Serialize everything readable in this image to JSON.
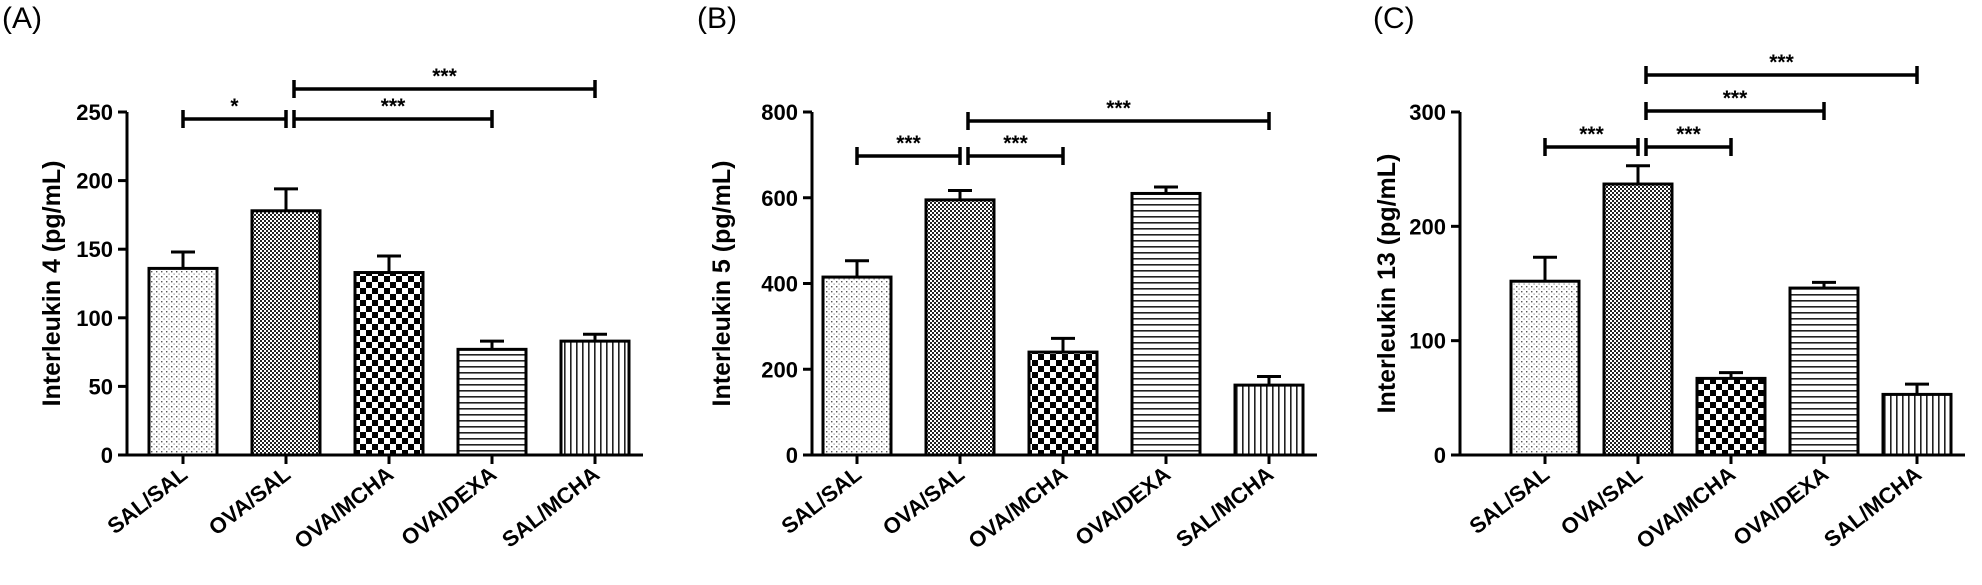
{
  "chart_data": [
    {
      "type": "bar",
      "panel_label": "(A)",
      "ylabel": "Interleukin 4 (pg/mL)",
      "ylim": [
        0,
        250
      ],
      "yticks": [
        0,
        50,
        100,
        150,
        200,
        250
      ],
      "categories": [
        "SAL/SAL",
        "OVA/SAL",
        "OVA/MCHA",
        "OVA/DEXA",
        "SAL/MCHA"
      ],
      "values": [
        136,
        178,
        133,
        77,
        83
      ],
      "errors": [
        12,
        16,
        12,
        6,
        5
      ],
      "patterns": [
        "dots",
        "fine-check",
        "checker",
        "horizontal",
        "vertical"
      ],
      "significance": [
        {
          "from": 0,
          "to": 1,
          "label": "*"
        },
        {
          "from": 1,
          "to": 3,
          "label": "***"
        },
        {
          "from": 1,
          "to": 4,
          "label": "***"
        }
      ]
    },
    {
      "type": "bar",
      "panel_label": "(B)",
      "ylabel": "Interleukin 5 (pg/mL)",
      "ylim": [
        0,
        800
      ],
      "yticks": [
        0,
        200,
        400,
        600,
        800
      ],
      "categories": [
        "SAL/SAL",
        "OVA/SAL",
        "OVA/MCHA",
        "OVA/DEXA",
        "SAL/MCHA"
      ],
      "values": [
        415,
        595,
        240,
        610,
        163
      ],
      "errors": [
        38,
        22,
        32,
        15,
        20
      ],
      "patterns": [
        "dots",
        "fine-check",
        "checker",
        "horizontal",
        "vertical"
      ],
      "significance": [
        {
          "from": 0,
          "to": 1,
          "label": "***"
        },
        {
          "from": 1,
          "to": 2,
          "label": "***"
        },
        {
          "from": 1,
          "to": 4,
          "label": "***"
        }
      ]
    },
    {
      "type": "bar",
      "panel_label": "(C)",
      "ylabel": "Interleukin 13 (pg/mL)",
      "ylim": [
        0,
        300
      ],
      "yticks": [
        0,
        100,
        200,
        300
      ],
      "categories": [
        "SAL/SAL",
        "OVA/SAL",
        "OVA/MCHA",
        "OVA/DEXA",
        "SAL/MCHA"
      ],
      "values": [
        152,
        237,
        67,
        146,
        53
      ],
      "errors": [
        21,
        16,
        5,
        5,
        9
      ],
      "patterns": [
        "dots",
        "fine-check",
        "checker",
        "horizontal",
        "vertical"
      ],
      "significance": [
        {
          "from": 0,
          "to": 1,
          "label": "***"
        },
        {
          "from": 1,
          "to": 2,
          "label": "***"
        },
        {
          "from": 1,
          "to": 3,
          "label": "***"
        },
        {
          "from": 1,
          "to": 4,
          "label": "***"
        }
      ]
    }
  ]
}
